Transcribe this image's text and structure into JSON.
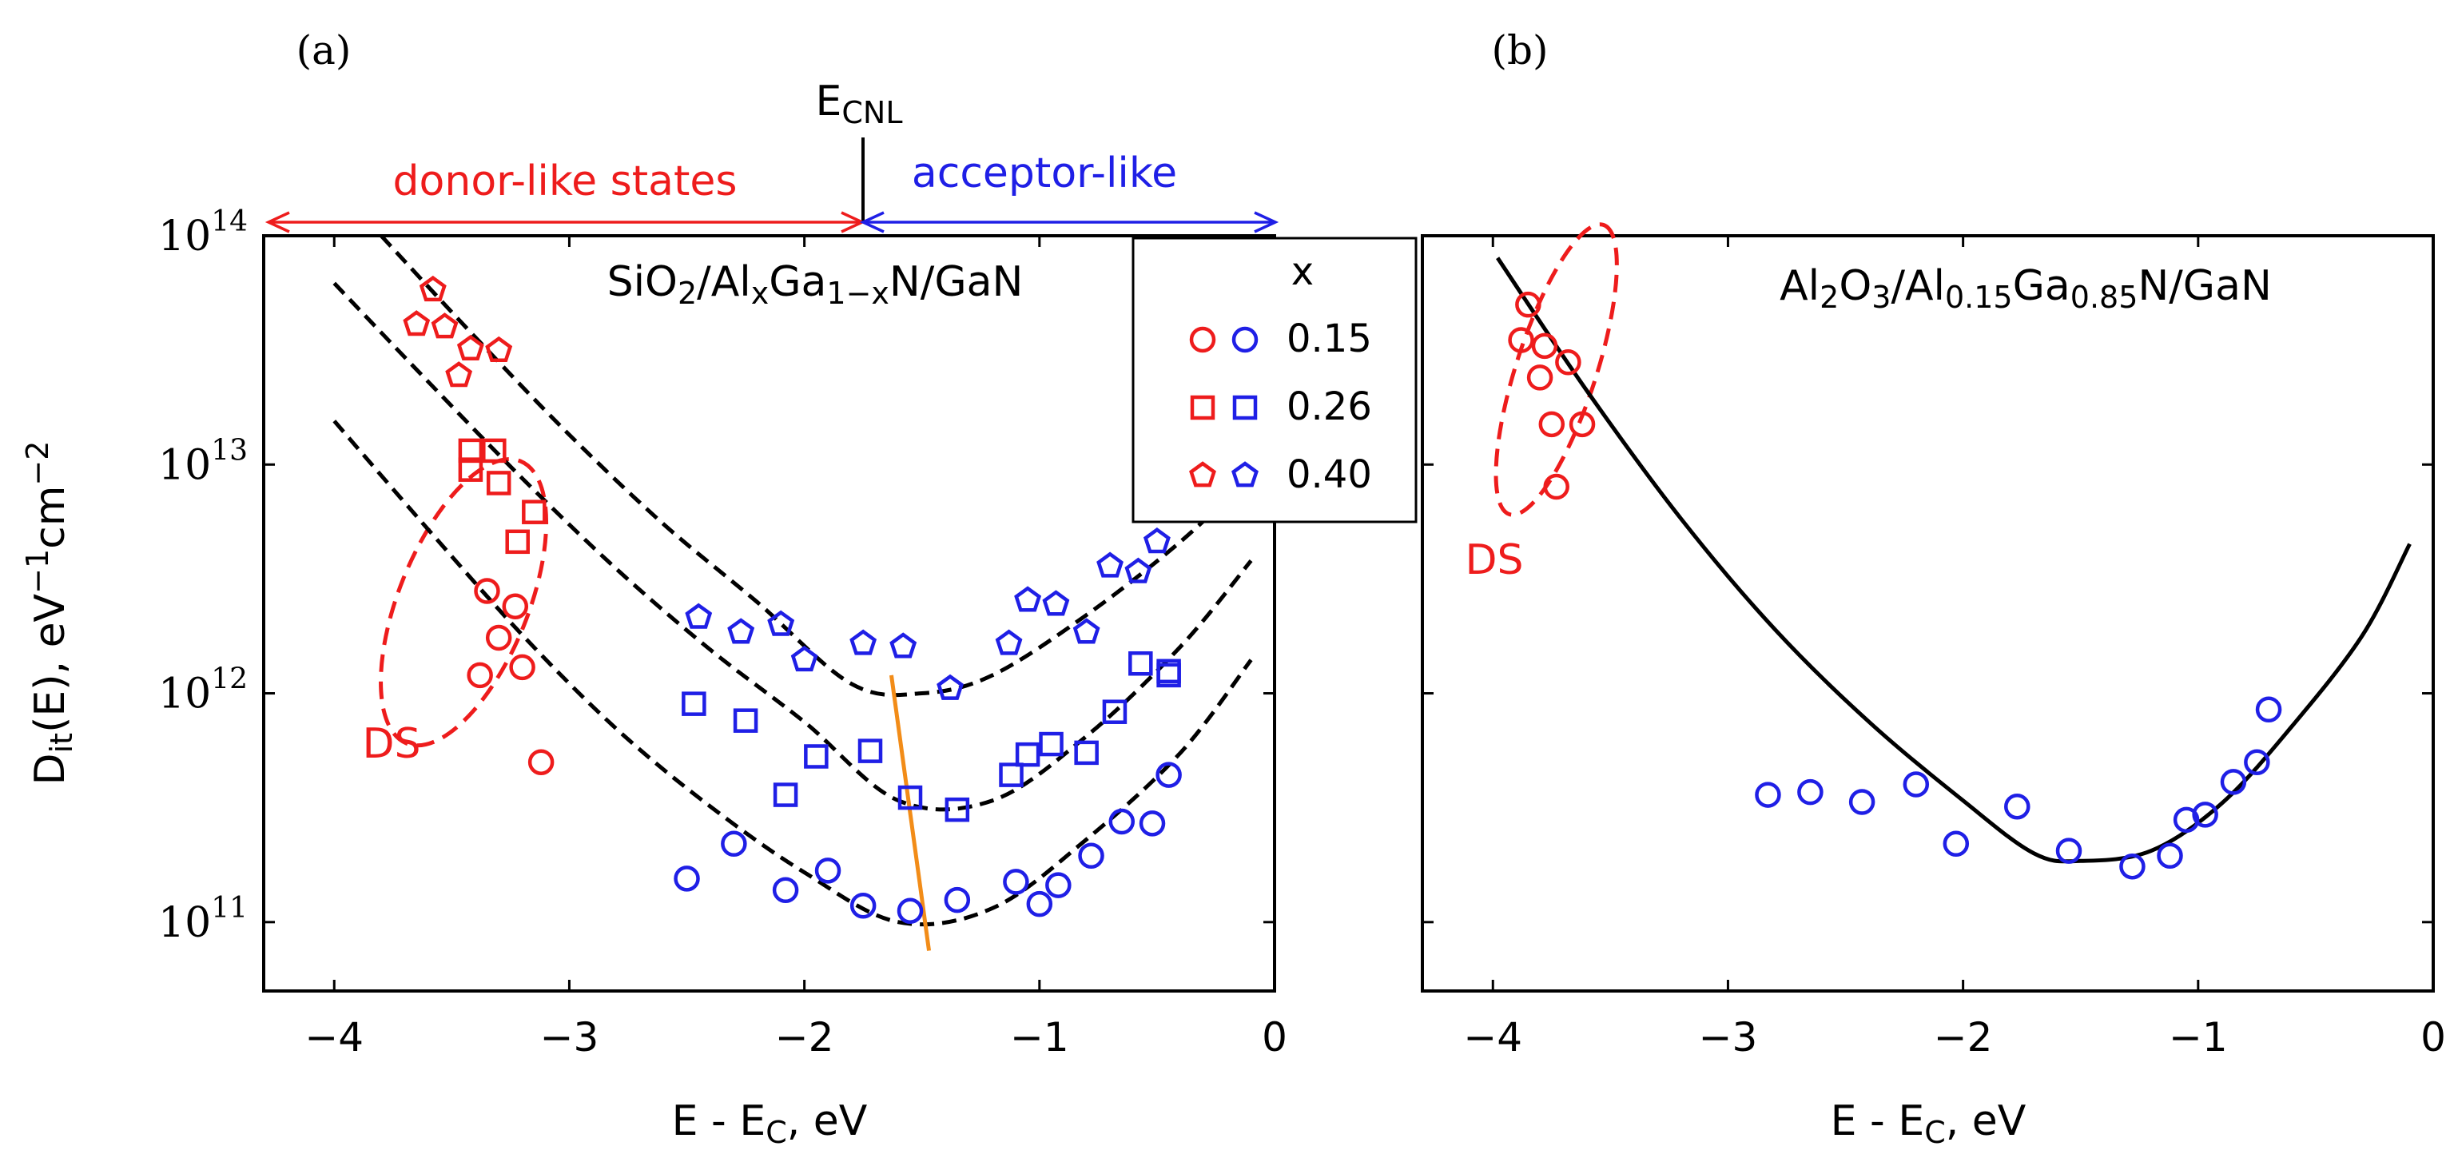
{
  "colors": {
    "red": "#ee1c1c",
    "blue": "#1f1fe6",
    "orange": "#f28c18",
    "black": "#000000"
  },
  "chart_data": [
    {
      "panel": "a",
      "panel_label": "(a)",
      "type": "scatter",
      "title": "SiO2/AlxGa1-xN/GaN",
      "title_parts": {
        "p1": "SiO",
        "s1": "2",
        "p2": "/Al",
        "s2": "x",
        "p3": "Ga",
        "s3": "1−x",
        "p4": "N/GaN"
      },
      "xlabel": "E - EC, eV",
      "xlabel_parts": {
        "main": "E - E",
        "sub": "C",
        "tail": ", eV"
      },
      "ylabel": "Dit(E), eV−1cm−2",
      "ylabel_parts": {
        "p1": "D",
        "s1": "it",
        "p2": "(E), eV",
        "e1": "−1",
        "p3": "cm",
        "e2": "−2"
      },
      "yscale": "log",
      "xlim": [
        -4.3,
        0
      ],
      "ylim": [
        50000000000.0,
        100000000000000.0
      ],
      "xticks": [
        -4,
        -3,
        -2,
        -1,
        0
      ],
      "xtick_labels": [
        "−4",
        "−3",
        "−2",
        "−1",
        "0"
      ],
      "yticks": [
        100000000000.0,
        1000000000000.0,
        10000000000000.0,
        100000000000000.0
      ],
      "ytick_labels": [
        {
          "base": "10",
          "exp": "11"
        },
        {
          "base": "10",
          "exp": "12"
        },
        {
          "base": "10",
          "exp": "13"
        },
        {
          "base": "10",
          "exp": "14"
        }
      ],
      "annotations": {
        "ecnl": {
          "main": "E",
          "sub": "CNL",
          "x": -1.77
        },
        "donor": {
          "text": "donor-like states",
          "from": -4.3,
          "to": -1.77
        },
        "acceptor": {
          "text": "acceptor-like",
          "from": -1.77,
          "to": 0
        },
        "ds_label": "DS",
        "ds_region": {
          "cx": -3.45,
          "cy": 2500000000000.0,
          "span_x": 0.55,
          "span_decades": 1.33,
          "angle_deg": -68
        },
        "cnl_trend_line": [
          [
            -1.63,
            1200000000000.0
          ],
          [
            -1.47,
            75000000000.0
          ]
        ]
      },
      "legend": {
        "title": "x",
        "location": "top-right",
        "entries": [
          {
            "marker": "circle",
            "label": "0.15"
          },
          {
            "marker": "square",
            "label": "0.26"
          },
          {
            "marker": "pentagon",
            "label": "0.40"
          }
        ]
      },
      "fits": [
        {
          "name": "fit x=0.15",
          "style": "dashed",
          "points": [
            [
              -4.0,
              15500000000000.0
            ],
            [
              -3.6,
              5200000000000.0
            ],
            [
              -3.2,
              1800000000000.0
            ],
            [
              -2.8,
              700000000000.0
            ],
            [
              -2.4,
              320000000000.0
            ],
            [
              -2.0,
              165000000000.0
            ],
            [
              -1.6,
              100000000000.0
            ],
            [
              -1.2,
              115000000000.0
            ],
            [
              -0.8,
              230000000000.0
            ],
            [
              -0.4,
              550000000000.0
            ],
            [
              -0.1,
              1400000000000.0
            ]
          ]
        },
        {
          "name": "fit x=0.26",
          "style": "dashed",
          "points": [
            [
              -4.0,
              62000000000000.0
            ],
            [
              -3.6,
              23000000000000.0
            ],
            [
              -3.2,
              8700000000000.0
            ],
            [
              -2.8,
              3500000000000.0
            ],
            [
              -2.4,
              1550000000000.0
            ],
            [
              -2.0,
              750000000000.0
            ],
            [
              -1.6,
              340000000000.0
            ],
            [
              -1.2,
              340000000000.0
            ],
            [
              -0.8,
              650000000000.0
            ],
            [
              -0.4,
              1600000000000.0
            ],
            [
              -0.1,
              3800000000000.0
            ]
          ]
        },
        {
          "name": "fit x=0.40",
          "style": "dashed",
          "points": [
            [
              -3.8,
              100000000000000.0
            ],
            [
              -3.4,
              36000000000000.0
            ],
            [
              -3.0,
              13500000000000.0
            ],
            [
              -2.6,
              5500000000000.0
            ],
            [
              -2.2,
              2500000000000.0
            ],
            [
              -1.8,
              1100000000000.0
            ],
            [
              -1.5,
              1000000000000.0
            ],
            [
              -1.2,
              1200000000000.0
            ],
            [
              -0.8,
              2200000000000.0
            ],
            [
              -0.4,
              4600000000000.0
            ],
            [
              -0.1,
              9000000000000.0
            ]
          ]
        }
      ],
      "series": [
        {
          "name": "x=0.15 DS",
          "marker": "circle",
          "color": "red",
          "points": [
            [
              -3.35,
              2800000000000.0
            ],
            [
              -3.23,
              2400000000000.0
            ],
            [
              -3.3,
              1750000000000.0
            ],
            [
              -3.38,
              1200000000000.0
            ],
            [
              -3.2,
              1300000000000.0
            ],
            [
              -3.12,
              500000000000.0
            ]
          ]
        },
        {
          "name": "x=0.26 DS",
          "marker": "square",
          "color": "red",
          "points": [
            [
              -3.42,
              11500000000000.0
            ],
            [
              -3.42,
              9500000000000.0
            ],
            [
              -3.32,
              11500000000000.0
            ],
            [
              -3.3,
              8300000000000.0
            ],
            [
              -3.15,
              6200000000000.0
            ],
            [
              -3.22,
              4600000000000.0
            ]
          ]
        },
        {
          "name": "x=0.40 DS",
          "marker": "pentagon",
          "color": "red",
          "points": [
            [
              -3.58,
              58000000000000.0
            ],
            [
              -3.65,
              41000000000000.0
            ],
            [
              -3.53,
              40000000000000.0
            ],
            [
              -3.42,
              32000000000000.0
            ],
            [
              -3.3,
              31500000000000.0
            ],
            [
              -3.47,
              24500000000000.0
            ]
          ]
        },
        {
          "name": "x=0.15",
          "marker": "circle",
          "color": "blue",
          "points": [
            [
              -2.5,
              155000000000.0
            ],
            [
              -2.3,
              220000000000.0
            ],
            [
              -2.08,
              138000000000.0
            ],
            [
              -1.9,
              168000000000.0
            ],
            [
              -1.75,
              118000000000.0
            ],
            [
              -1.55,
              112000000000.0
            ],
            [
              -1.35,
              125000000000.0
            ],
            [
              -1.1,
              150000000000.0
            ],
            [
              -1.0,
              120000000000.0
            ],
            [
              -0.92,
              145000000000.0
            ],
            [
              -0.78,
              195000000000.0
            ],
            [
              -0.65,
              275000000000.0
            ],
            [
              -0.52,
              270000000000.0
            ],
            [
              -0.45,
              440000000000.0
            ]
          ]
        },
        {
          "name": "x=0.26",
          "marker": "square",
          "color": "blue",
          "points": [
            [
              -2.47,
              900000000000.0
            ],
            [
              -2.25,
              760000000000.0
            ],
            [
              -2.08,
              360000000000.0
            ],
            [
              -1.95,
              530000000000.0
            ],
            [
              -1.72,
              560000000000.0
            ],
            [
              -1.55,
              350000000000.0
            ],
            [
              -1.35,
              310000000000.0
            ],
            [
              -1.12,
              440000000000.0
            ],
            [
              -1.05,
              540000000000.0
            ],
            [
              -0.95,
              600000000000.0
            ],
            [
              -0.8,
              550000000000.0
            ],
            [
              -0.68,
              830000000000.0
            ],
            [
              -0.57,
              1350000000000.0
            ],
            [
              -0.45,
              1200000000000.0
            ],
            [
              -0.45,
              1250000000000.0
            ]
          ]
        },
        {
          "name": "x=0.40",
          "marker": "pentagon",
          "color": "blue",
          "points": [
            [
              -2.45,
              2150000000000.0
            ],
            [
              -2.27,
              1850000000000.0
            ],
            [
              -2.1,
              2000000000000.0
            ],
            [
              -2.0,
              1400000000000.0
            ],
            [
              -1.75,
              1650000000000.0
            ],
            [
              -1.58,
              1600000000000.0
            ],
            [
              -1.38,
              1050000000000.0
            ],
            [
              -1.13,
              1650000000000.0
            ],
            [
              -1.05,
              2550000000000.0
            ],
            [
              -0.93,
              2450000000000.0
            ],
            [
              -0.8,
              1850000000000.0
            ],
            [
              -0.7,
              3600000000000.0
            ],
            [
              -0.58,
              3400000000000.0
            ],
            [
              -0.5,
              4600000000000.0
            ]
          ]
        }
      ]
    },
    {
      "panel": "b",
      "panel_label": "(b)",
      "type": "scatter",
      "title": "Al2O3/Al0.15Ga0.85N/GaN",
      "title_parts": {
        "p1": "Al",
        "s1": "2",
        "p2": "O",
        "s2": "3",
        "p3": "/Al",
        "s3": "0.15",
        "p4": "Ga",
        "s4": "0.85",
        "p5": "N/GaN"
      },
      "xlabel": "E - EC, eV",
      "xlabel_parts": {
        "main": "E - E",
        "sub": "C",
        "tail": ", eV"
      },
      "yscale": "log",
      "xlim": [
        -4.3,
        0
      ],
      "ylim": [
        50000000000.0,
        100000000000000.0
      ],
      "xticks": [
        -4,
        -3,
        -2,
        -1,
        0
      ],
      "xtick_labels": [
        "−4",
        "−3",
        "−2",
        "−1",
        "0"
      ],
      "yticks": [
        100000000000.0,
        1000000000000.0,
        10000000000000.0,
        100000000000000.0
      ],
      "annotations": {
        "ds_label": "DS",
        "ds_region": {
          "cx": -3.73,
          "cy": 26000000000000.0,
          "span_x": 0.34,
          "span_decades": 1.33,
          "angle_deg": -72
        }
      },
      "fits": [
        {
          "name": "fit",
          "style": "solid",
          "points": [
            [
              -3.98,
              80000000000000.0
            ],
            [
              -3.6,
              21000000000000.0
            ],
            [
              -3.2,
              5800000000000.0
            ],
            [
              -2.8,
              1900000000000.0
            ],
            [
              -2.4,
              750000000000.0
            ],
            [
              -2.0,
              340000000000.0
            ],
            [
              -1.7,
              200000000000.0
            ],
            [
              -1.5,
              185000000000.0
            ],
            [
              -1.2,
              205000000000.0
            ],
            [
              -0.9,
              330000000000.0
            ],
            [
              -0.6,
              720000000000.0
            ],
            [
              -0.3,
              1800000000000.0
            ],
            [
              -0.1,
              4500000000000.0
            ]
          ]
        }
      ],
      "series": [
        {
          "name": "DS",
          "marker": "circle",
          "color": "red",
          "points": [
            [
              -3.85,
              50000000000000.0
            ],
            [
              -3.88,
              35000000000000.0
            ],
            [
              -3.78,
              33000000000000.0
            ],
            [
              -3.68,
              28000000000000.0
            ],
            [
              -3.8,
              24000000000000.0
            ],
            [
              -3.75,
              15000000000000.0
            ],
            [
              -3.62,
              15000000000000.0
            ],
            [
              -3.73,
              8000000000000.0
            ]
          ]
        },
        {
          "name": "x=0.15",
          "marker": "circle",
          "color": "blue",
          "points": [
            [
              -2.83,
              360000000000.0
            ],
            [
              -2.65,
              370000000000.0
            ],
            [
              -2.43,
              335000000000.0
            ],
            [
              -2.2,
              400000000000.0
            ],
            [
              -2.03,
              220000000000.0
            ],
            [
              -1.77,
              320000000000.0
            ],
            [
              -1.55,
              205000000000.0
            ],
            [
              -1.28,
              175000000000.0
            ],
            [
              -1.12,
              195000000000.0
            ],
            [
              -1.05,
              280000000000.0
            ],
            [
              -0.97,
              295000000000.0
            ],
            [
              -0.85,
              410000000000.0
            ],
            [
              -0.75,
              500000000000.0
            ],
            [
              -0.7,
              850000000000.0
            ]
          ]
        }
      ]
    }
  ]
}
